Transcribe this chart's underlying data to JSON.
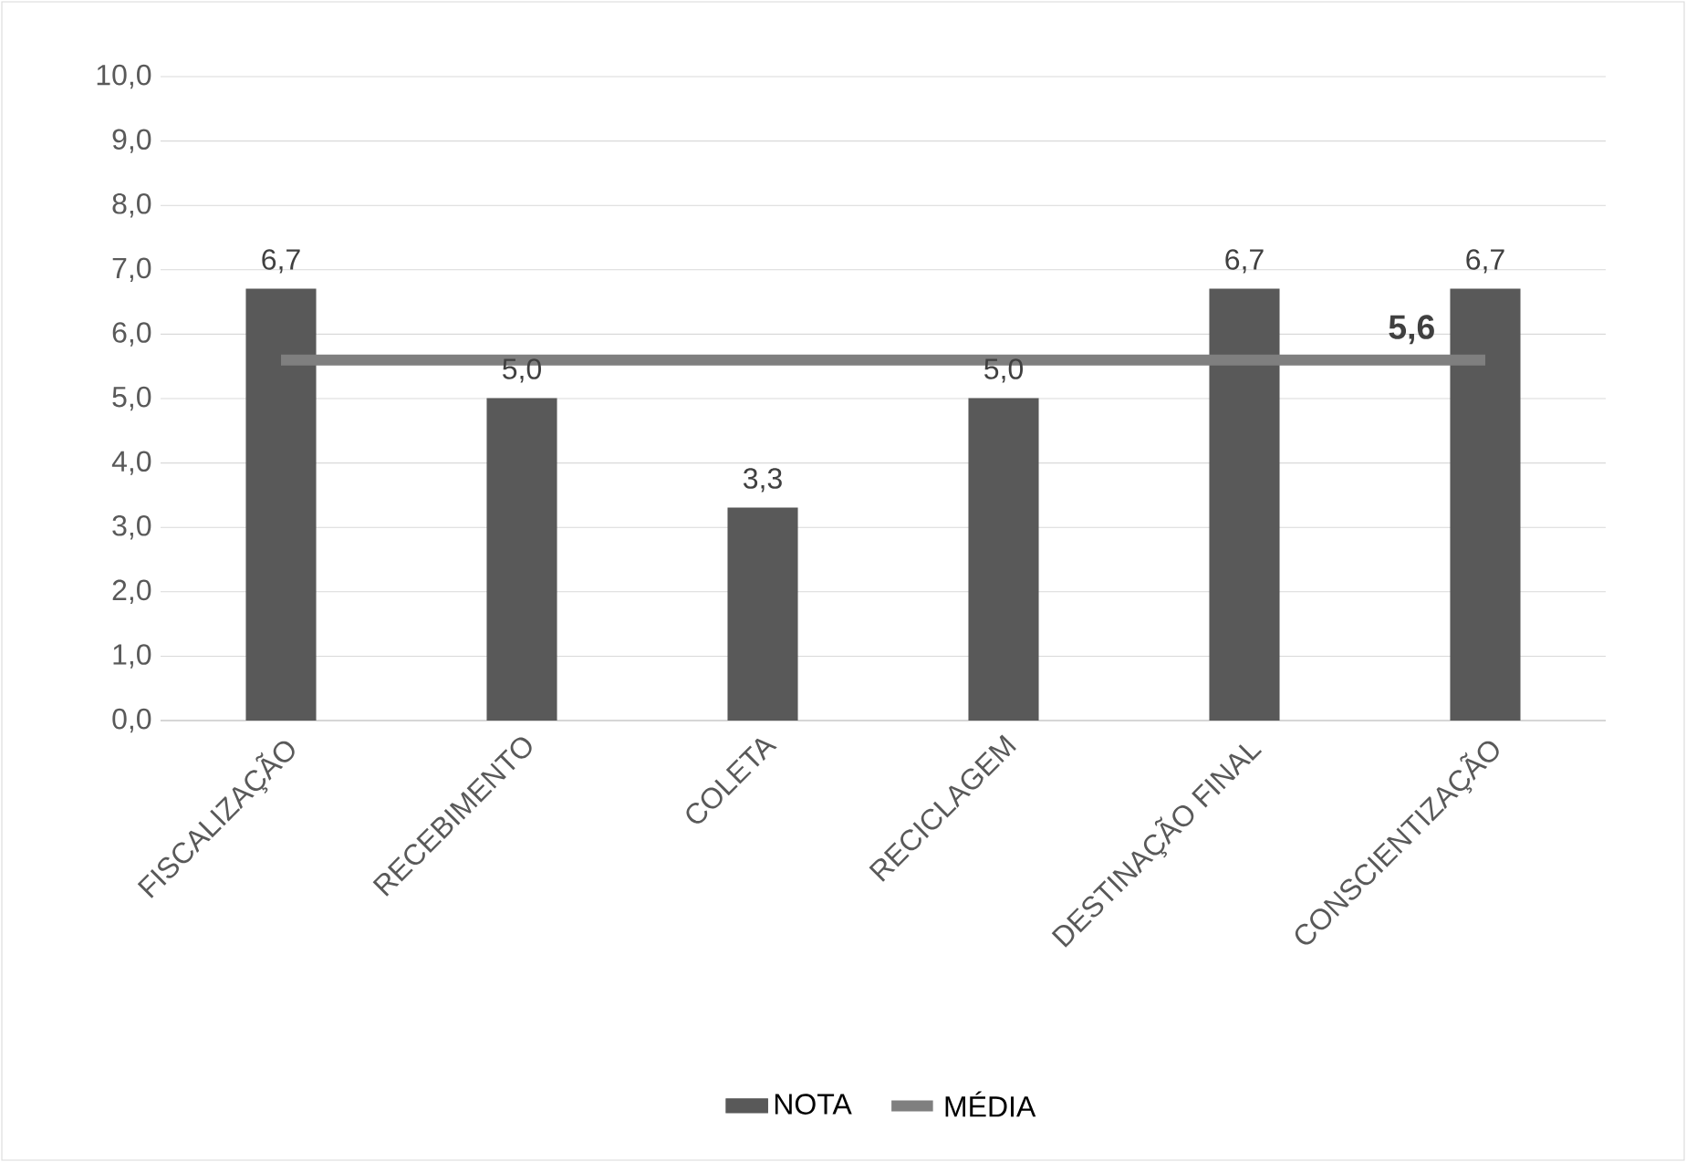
{
  "chart_data": {
    "type": "bar",
    "categories": [
      "FISCALIZAÇÃO",
      "RECEBIMENTO",
      "COLETA",
      "RECICLAGEM",
      "DESTINAÇÃO FINAL",
      "CONSCIENTIZAÇÃO"
    ],
    "series": [
      {
        "name": "NOTA",
        "color": "#595959",
        "values": [
          6.7,
          5.0,
          3.3,
          5.0,
          6.7,
          6.7
        ],
        "value_labels": [
          "6,7",
          "5,0",
          "3,3",
          "5,0",
          "6,7",
          "6,7"
        ]
      },
      {
        "name": "MÉDIA",
        "type": "line",
        "color": "#7f7f7f",
        "line_style": "solid",
        "marker": "none",
        "values": [
          5.6,
          5.6,
          5.6,
          5.6,
          5.6,
          5.6
        ],
        "value_labels": [
          null,
          null,
          null,
          null,
          null,
          "5,6"
        ]
      }
    ],
    "ylim": [
      0,
      10
    ],
    "yticks": [
      {
        "value": 0,
        "label": "0,0"
      },
      {
        "value": 1,
        "label": "1,0"
      },
      {
        "value": 2,
        "label": "2,0"
      },
      {
        "value": 3,
        "label": "3,0"
      },
      {
        "value": 4,
        "label": "4,0"
      },
      {
        "value": 5,
        "label": "5,0"
      },
      {
        "value": 6,
        "label": "6,0"
      },
      {
        "value": 7,
        "label": "7,0"
      },
      {
        "value": 8,
        "label": "8,0"
      },
      {
        "value": 9,
        "label": "9,0"
      },
      {
        "value": 10,
        "label": "10,0"
      }
    ],
    "grid": "y",
    "legend": "bottom"
  }
}
